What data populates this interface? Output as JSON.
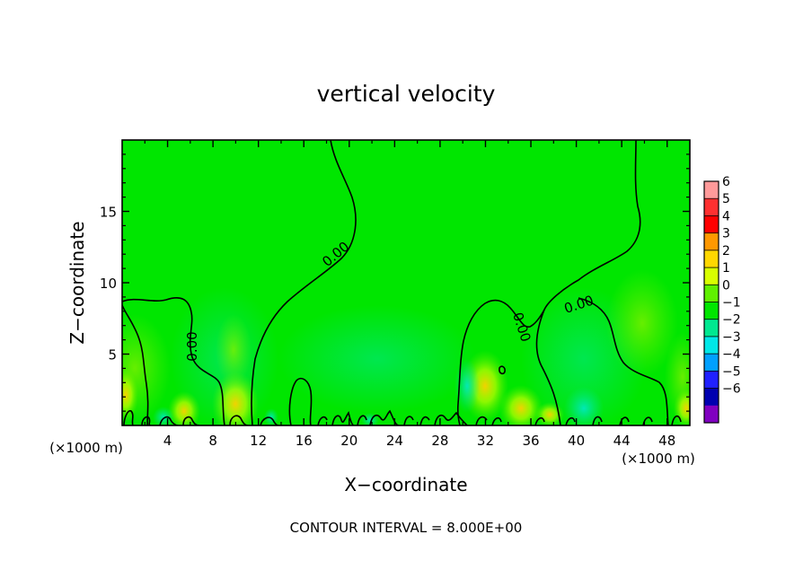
{
  "chart_data": {
    "type": "heatmap",
    "title": "vertical velocity",
    "xlabel": "X−coordinate",
    "ylabel": "Z−coordinate",
    "x_unit": "(×1000 m)",
    "x_unit_right": "(×1000 m)",
    "xlim": [
      0,
      50
    ],
    "ylim": [
      0,
      20
    ],
    "x_ticks": [
      4,
      8,
      12,
      16,
      20,
      24,
      28,
      32,
      36,
      40,
      44,
      48
    ],
    "x_tick_labels": [
      "4",
      "8",
      "12",
      "16",
      "20",
      "24",
      "28",
      "32",
      "36",
      "40",
      "44",
      "48"
    ],
    "y_ticks": [
      5,
      10,
      15
    ],
    "y_tick_labels": [
      "5",
      "10",
      "15"
    ],
    "footer": "CONTOUR INTERVAL = 8.000E+00",
    "contour_label": "0.00",
    "background_color": "#00e600",
    "colorbar": {
      "levels": [
        "6",
        "5",
        "4",
        "3",
        "2",
        "1",
        "0",
        "−1",
        "−2",
        "−3",
        "−4",
        "−5",
        "−6"
      ],
      "colors": [
        "#ff9a9a",
        "#ff3030",
        "#ff0000",
        "#ff9800",
        "#ffd800",
        "#d8ff00",
        "#60f000",
        "#00e600",
        "#00e890",
        "#00e8e8",
        "#00a0ff",
        "#2020ff",
        "#0000b0",
        "#8000c0"
      ]
    }
  }
}
